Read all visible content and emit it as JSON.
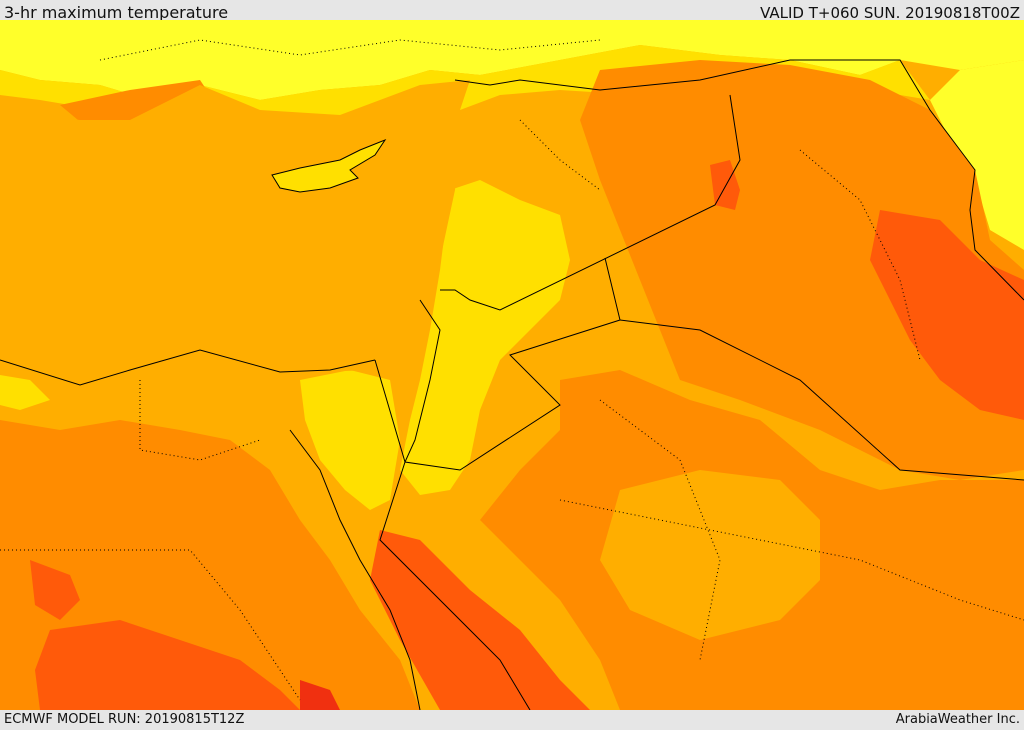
{
  "header": {
    "title": "3-hr maximum temperature",
    "valid": "VALID T+060 SUN. 20190818T00Z"
  },
  "footer": {
    "model_run": "ECMWF MODEL RUN: 20190815T12Z",
    "credit": "ArabiaWeather Inc."
  },
  "map": {
    "field": "3-hr maximum temperature",
    "palette": {
      "pale_yellow": "#ffff2a",
      "yellow": "#ffe000",
      "light_orange": "#ffae00",
      "orange": "#ff8c00",
      "dark_orange": "#ff5a0a",
      "red_orange": "#f03010",
      "border_color": "#000000"
    }
  }
}
